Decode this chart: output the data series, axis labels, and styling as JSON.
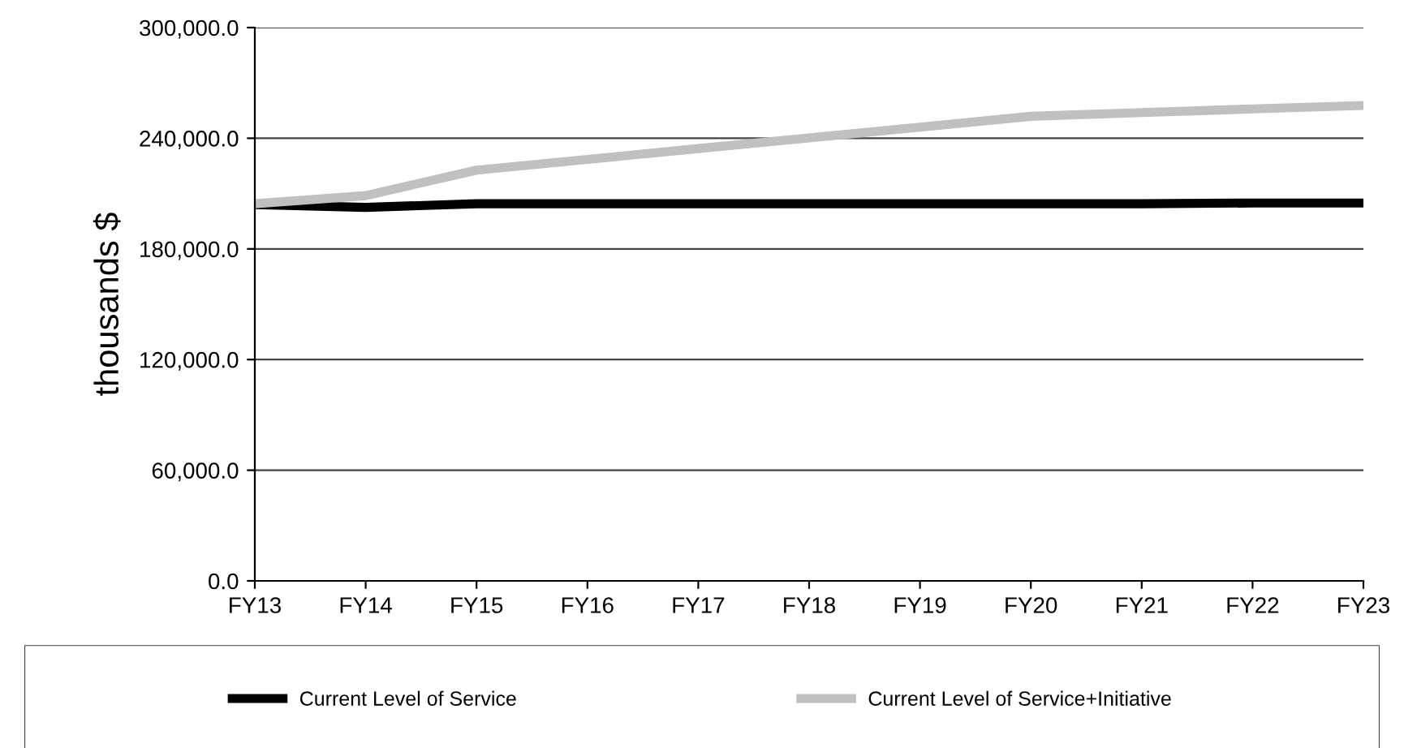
{
  "chart_data": {
    "type": "line",
    "ylabel": "thousands $",
    "categories": [
      "FY13",
      "FY14",
      "FY15",
      "FY16",
      "FY17",
      "FY18",
      "FY19",
      "FY20",
      "FY21",
      "FY22",
      "FY23"
    ],
    "series": [
      {
        "name": "Current Level of Service",
        "color": "#000000",
        "values": [
          204000,
          202500,
          204500,
          204500,
          204500,
          204500,
          204500,
          204500,
          204500,
          204900,
          204900
        ]
      },
      {
        "name": "Current Level of Service+Initiative",
        "color": "#c0c0c0",
        "values": [
          204500,
          208900,
          222700,
          228500,
          234400,
          240200,
          246000,
          251900,
          253900,
          255900,
          257800
        ]
      }
    ],
    "ylim": [
      0,
      300000
    ],
    "yticks": [
      {
        "value": 0,
        "label": "0.0"
      },
      {
        "value": 60000,
        "label": "60,000.0"
      },
      {
        "value": 120000,
        "label": "120,000.0"
      },
      {
        "value": 180000,
        "label": "180,000.0"
      },
      {
        "value": 240000,
        "label": "240,000.0"
      },
      {
        "value": 300000,
        "label": "300,000.0"
      }
    ],
    "grid": "y",
    "legend": "bottom",
    "marker": "none",
    "line_style": "solid"
  }
}
